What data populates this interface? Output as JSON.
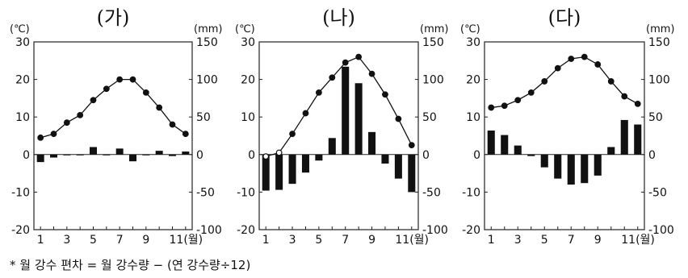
{
  "footnote": "* 월 강수 편차 = 월 강수량 − (연 강수량÷12)",
  "chart_data": [
    {
      "type": "bar+line",
      "title": "(가)",
      "y_left_unit": "(℃)",
      "y_right_unit": "(mm)",
      "ylim_left": [
        -20,
        30
      ],
      "ylim_right": [
        -100,
        150
      ],
      "left_ticks": [
        "30",
        "20",
        "10",
        "0",
        "-10",
        "-20"
      ],
      "right_ticks": [
        "150",
        "100",
        "50",
        "0",
        "-50",
        "-100"
      ],
      "x_ticks": [
        "1",
        "3",
        "5",
        "7",
        "9",
        "11(월)"
      ],
      "months": [
        1,
        2,
        3,
        4,
        5,
        6,
        7,
        8,
        9,
        10,
        11,
        12
      ],
      "temperature": [
        4.5,
        5.5,
        8.5,
        10.5,
        14.5,
        17.5,
        20,
        20,
        16.5,
        12.5,
        8,
        5.5
      ],
      "precip_deviation": [
        -10,
        -4,
        0,
        0,
        10,
        0,
        8,
        -9,
        0,
        5,
        -2,
        4
      ]
    },
    {
      "type": "bar+line",
      "title": "(나)",
      "y_left_unit": "(℃)",
      "y_right_unit": "(mm)",
      "ylim_left": [
        -20,
        30
      ],
      "ylim_right": [
        -100,
        150
      ],
      "left_ticks": [
        "30",
        "20",
        "10",
        "0",
        "-10",
        "-20"
      ],
      "right_ticks": [
        "150",
        "100",
        "50",
        "0",
        "-50",
        "-100"
      ],
      "x_ticks": [
        "1",
        "3",
        "5",
        "7",
        "9",
        "11(월)"
      ],
      "months": [
        1,
        2,
        3,
        4,
        5,
        6,
        7,
        8,
        9,
        10,
        11,
        12
      ],
      "temperature": [
        -0.5,
        0.5,
        5.5,
        11,
        16.5,
        20.5,
        24.5,
        26,
        21.5,
        16,
        9.5,
        2.5
      ],
      "precip_deviation": [
        -48,
        -47,
        -39,
        -24,
        -8,
        22,
        117,
        95,
        30,
        -12,
        -32,
        -50
      ]
    },
    {
      "type": "bar+line",
      "title": "(다)",
      "y_left_unit": "(℃)",
      "y_right_unit": "(mm)",
      "ylim_left": [
        -20,
        30
      ],
      "ylim_right": [
        -100,
        150
      ],
      "left_ticks": [
        "30",
        "20",
        "10",
        "0",
        "-10",
        "-20"
      ],
      "right_ticks": [
        "150",
        "100",
        "50",
        "0",
        "-50",
        "-100"
      ],
      "x_ticks": [
        "1",
        "3",
        "5",
        "7",
        "9",
        "11(월)"
      ],
      "months": [
        1,
        2,
        3,
        4,
        5,
        6,
        7,
        8,
        9,
        10,
        11,
        12
      ],
      "temperature": [
        12.5,
        13,
        14.5,
        16.5,
        19.5,
        23,
        25.5,
        26,
        24,
        19.5,
        15.5,
        13.5
      ],
      "precip_deviation": [
        32,
        26,
        12,
        -2,
        -17,
        -32,
        -40,
        -38,
        -28,
        10,
        46,
        40
      ]
    }
  ]
}
